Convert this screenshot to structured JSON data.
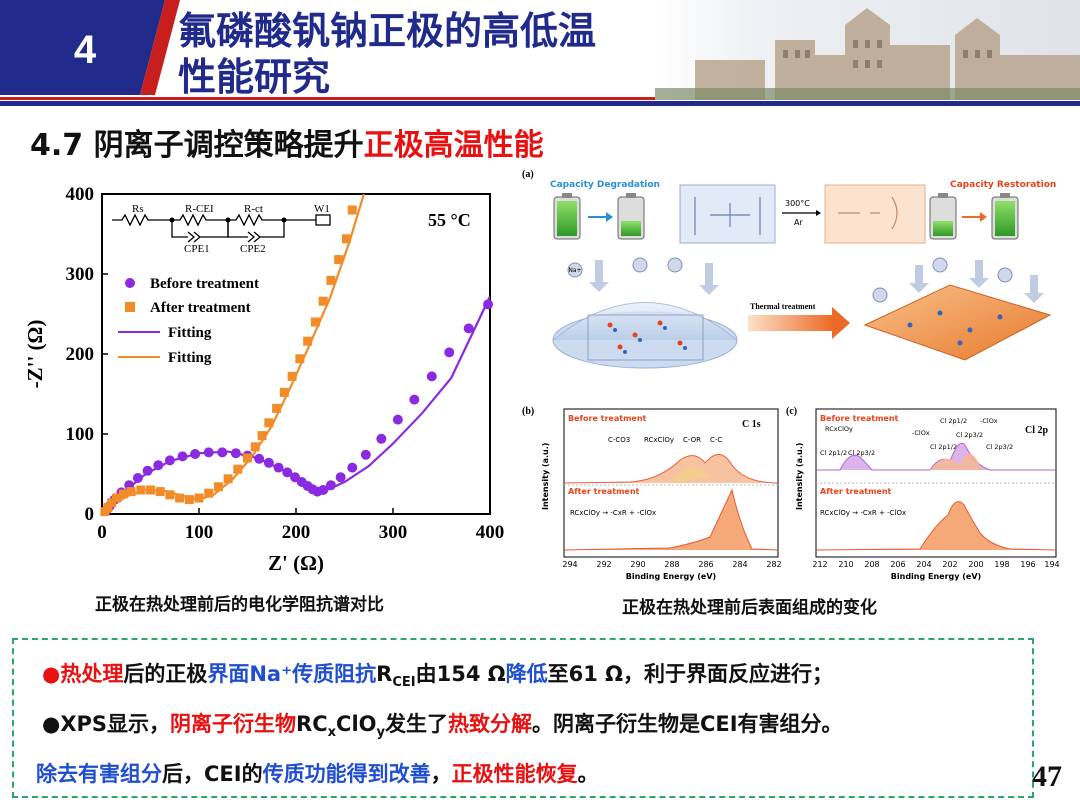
{
  "header": {
    "section_number": "4",
    "title_line1": "氟磷酸钒钠正极的高低温",
    "title_line2": "性能研究"
  },
  "subtitle": {
    "prefix": "4.7 阴离子调控策略提升",
    "highlight": "正极高温性能"
  },
  "eis_panel": {
    "temperature_label": "55 °C",
    "circuit_labels": [
      "Rs",
      "R-CEI",
      "R-ct",
      "W1",
      "CPE1",
      "CPE2"
    ],
    "legend": [
      "Before treatment",
      "After treatment",
      "Fitting",
      "Fitting"
    ],
    "caption": "正极在热处理前后的电化学阻抗谱对比"
  },
  "chart_data": {
    "type": "scatter",
    "title": "",
    "xlabel": "Z' (Ω)",
    "ylabel": "-Z'' (Ω)",
    "xlim": [
      0,
      400
    ],
    "ylim": [
      0,
      400
    ],
    "xticks": [
      0,
      100,
      200,
      300,
      400
    ],
    "yticks": [
      0,
      100,
      200,
      300,
      400
    ],
    "series": [
      {
        "name": "Before treatment",
        "color": "#8a2be2",
        "marker": "circle",
        "x": [
          4,
          8,
          13,
          20,
          28,
          37,
          47,
          58,
          70,
          83,
          96,
          110,
          124,
          138,
          150,
          162,
          172,
          182,
          191,
          199,
          206,
          212,
          217,
          222,
          228,
          236,
          246,
          258,
          272,
          288,
          305,
          322,
          340,
          358,
          378,
          398
        ],
        "y": [
          4,
          10,
          18,
          27,
          36,
          45,
          54,
          61,
          67,
          72,
          75,
          77,
          77,
          76,
          73,
          69,
          64,
          58,
          52,
          46,
          40,
          35,
          31,
          28,
          30,
          36,
          46,
          58,
          74,
          94,
          118,
          143,
          172,
          202,
          232,
          262
        ]
      },
      {
        "name": "After treatment",
        "color": "#f28c28",
        "marker": "square",
        "x": [
          3,
          6,
          10,
          15,
          22,
          30,
          40,
          50,
          60,
          70,
          80,
          90,
          100,
          110,
          120,
          130,
          140,
          150,
          158,
          165,
          172,
          180,
          188,
          196,
          204,
          212,
          220,
          228,
          236,
          244,
          252,
          258
        ],
        "y": [
          3,
          8,
          14,
          20,
          25,
          28,
          30,
          30,
          28,
          24,
          20,
          18,
          20,
          26,
          34,
          44,
          56,
          70,
          84,
          98,
          114,
          132,
          152,
          172,
          194,
          216,
          240,
          266,
          292,
          318,
          344,
          380
        ]
      },
      {
        "name": "Fitting",
        "color": "#8a2be2",
        "marker": "line",
        "x": [
          0,
          10,
          25,
          45,
          70,
          100,
          130,
          160,
          185,
          205,
          220,
          232,
          250,
          275,
          300,
          330,
          360,
          400
        ],
        "y": [
          0,
          12,
          30,
          50,
          66,
          76,
          78,
          70,
          56,
          42,
          32,
          30,
          40,
          60,
          88,
          126,
          170,
          272
        ]
      },
      {
        "name": "Fitting",
        "color": "#f28c28",
        "marker": "line",
        "x": [
          0,
          10,
          25,
          45,
          65,
          85,
          100,
          115,
          135,
          155,
          175,
          195,
          215,
          235,
          255,
          270
        ],
        "y": [
          0,
          10,
          22,
          30,
          29,
          22,
          18,
          24,
          44,
          72,
          110,
          160,
          214,
          270,
          340,
          400
        ]
      }
    ]
  },
  "xps_panel": {
    "panel_a_label": "(a)",
    "capacity_degradation": "Capacity Degradation",
    "capacity_restoration": "Capacity Restoration",
    "thermal_arrow_top": "300°C",
    "thermal_arrow_bottom": "Ar",
    "thermal_treatment": "Thermal  treatment",
    "ion_label": "Na+",
    "panel_b_label": "(b)",
    "panel_c_label": "(c)",
    "c1s_label": "C 1s",
    "cl2p_label": "Cl 2p",
    "before_treatment": "Before treatment",
    "after_treatment": "After treatment",
    "ylabel": "Intensity (a.u.)",
    "xlabel": "Binding Energy (eV)",
    "b_ticks": [
      "294",
      "292",
      "290",
      "288",
      "286",
      "284",
      "282"
    ],
    "c_ticks": [
      "212",
      "210",
      "208",
      "206",
      "204",
      "202",
      "200",
      "198",
      "196",
      "194"
    ],
    "b_peaks": [
      "C-CO3",
      "RCxClOy",
      "C-OR",
      "C-C"
    ],
    "b_reaction": "RCxClOy → -CxR + -ClOx",
    "c_reaction": "RCxClOy → -CxR + -ClOx",
    "c_peak_labels": [
      "RCxClOy",
      "Cl 2p1/2",
      "Cl 2p3/2",
      "-ClOx",
      "Cl 2p1/2",
      "Cl 2p3/2",
      "-ClOx",
      "Cl 2p1/2",
      "Cl 2p3/2"
    ],
    "caption": "正极在热处理前后表面组成的变化"
  },
  "summary": {
    "line1": {
      "bullet": "●",
      "a": "热处理",
      "b": "后的正极",
      "c": "界面Na⁺传质阻抗",
      "d": "R",
      "d_sub": "CEI",
      "e": "由154 Ω",
      "f": "降低",
      "g": "至61 Ω，利于界面反应进行；"
    },
    "line2": {
      "bullet": "●",
      "a": "XPS显示，",
      "b": "阴离子衍生物",
      "c": "RC",
      "c_sub": "x",
      "c2": "ClO",
      "c2_sub": "y",
      "d": "发生了",
      "e": "热致分解",
      "f": "。阴离子衍生物是CEI有害组分。"
    },
    "line3": {
      "a": "除去有害组分",
      "b": "后，CEI的",
      "c": "传质功能得到改善",
      "d": "，",
      "e": "正极性能恢复",
      "f": "。"
    }
  },
  "page_number": "47",
  "colors": {
    "header_navy": "#1f2a8a",
    "header_red": "#c81e1e",
    "accent_red": "#e81010",
    "accent_blue": "#1f4fd0",
    "box_green": "#2ea56a"
  }
}
